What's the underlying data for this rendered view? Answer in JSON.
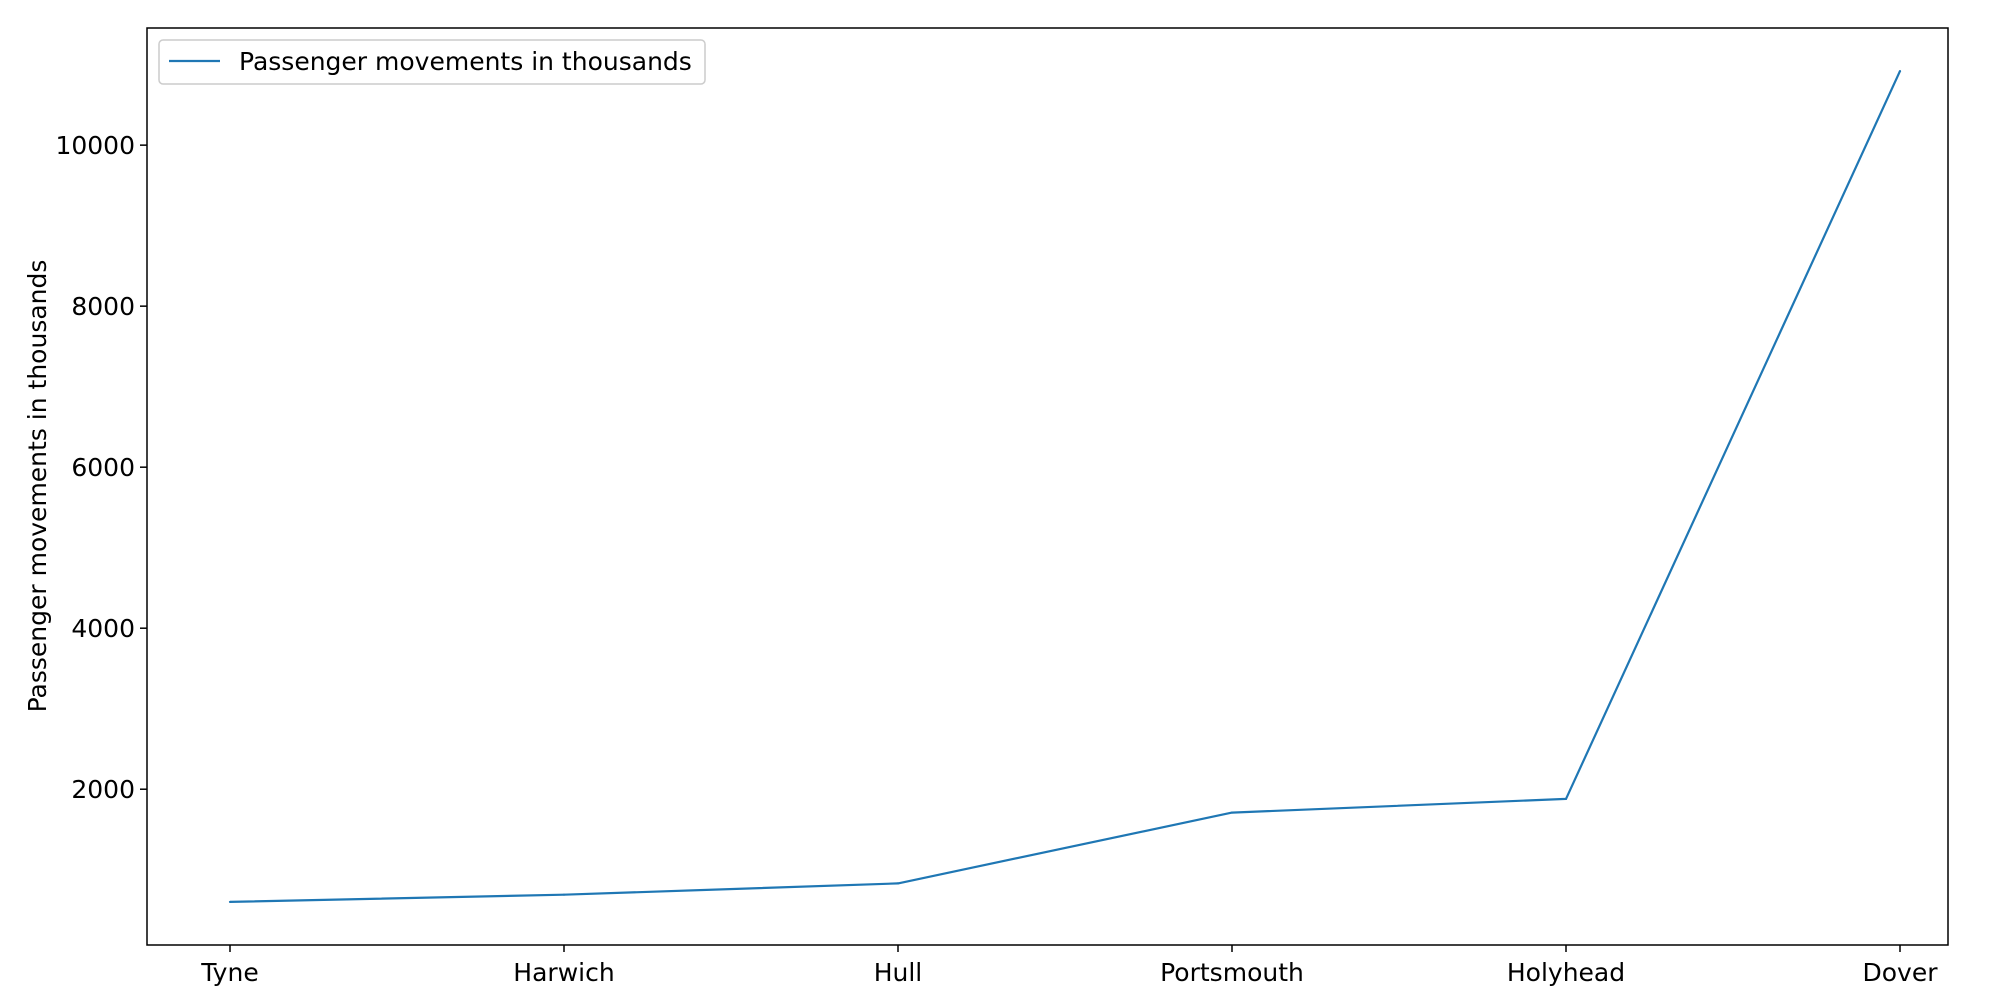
{
  "chart_data": {
    "type": "line",
    "categories": [
      "Tyne",
      "Harwich",
      "Hull",
      "Portsmouth",
      "Holyhead",
      "Dover"
    ],
    "series": [
      {
        "name": "Passenger movements in thousands",
        "values": [
          600,
          690,
          830,
          1710,
          1880,
          10920
        ],
        "color": "#1f77b4"
      }
    ],
    "ylabel": "Passenger movements in thousands",
    "xlabel": "",
    "ylim": [
      65,
      11455
    ],
    "yticks": [
      2000,
      4000,
      6000,
      8000,
      10000
    ],
    "grid": false,
    "legend_position": "top-left"
  }
}
